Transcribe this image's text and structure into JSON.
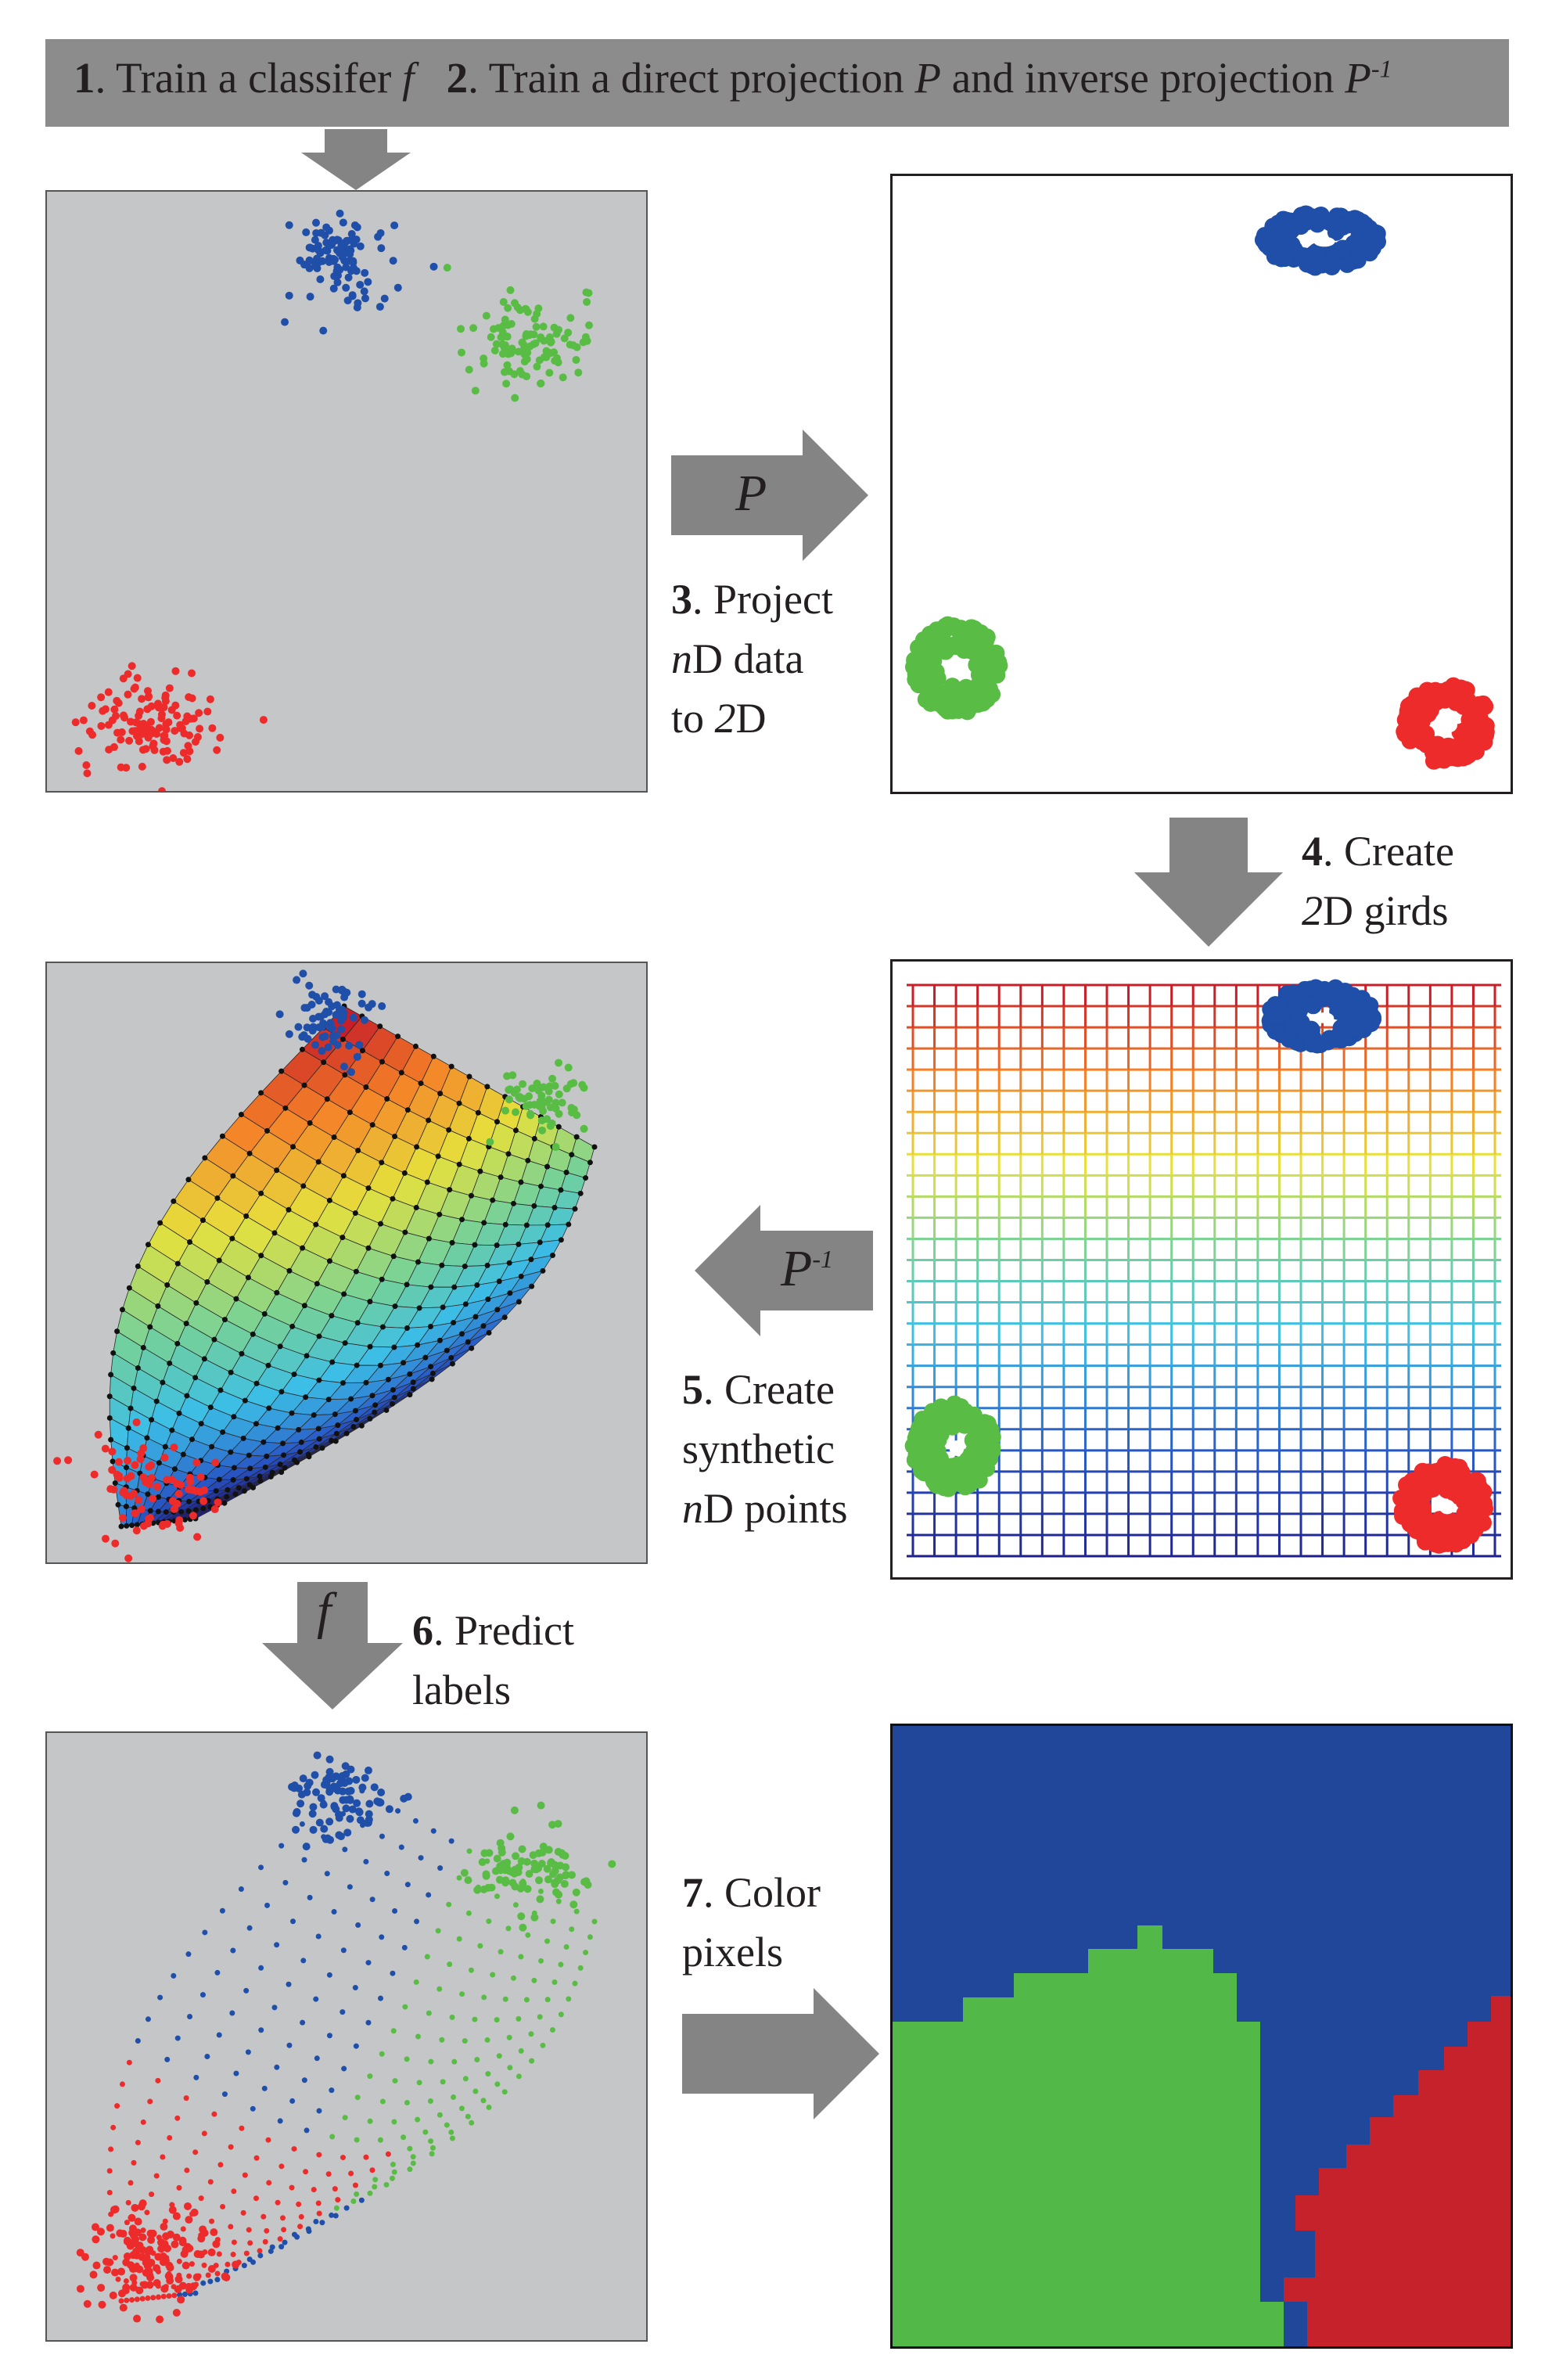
{
  "banner": {
    "step1_num": "1",
    "step1_text": ". Train a classifer ",
    "step1_symbol": "f",
    "step2_num": "2",
    "step2_text": ". Train a direct projection ",
    "step2_symbol": "P",
    "step2_mid": " and inverse projection ",
    "step2_symbol_inv": "P",
    "step2_sup": "-1"
  },
  "steps": {
    "s3": {
      "num": "3",
      "line1": ". Project",
      "line2_it": "n",
      "line2": "D data",
      "line3a": "to ",
      "line3_it": "2",
      "line3b": "D"
    },
    "s4": {
      "num": "4",
      "line1": ". Create",
      "line2_it": "2",
      "line2": "D girds"
    },
    "s5": {
      "num": "5",
      "line1": ". Create",
      "line2": "synthetic",
      "line3_it": "n",
      "line3": "D points"
    },
    "s6": {
      "num": "6",
      "line1": ". Predict",
      "line2": "labels"
    },
    "s7": {
      "num": "7",
      "line1": ". Color",
      "line2": "pixels"
    }
  },
  "arrows": {
    "projection": "P",
    "inverse": "P",
    "inverse_sup": "-1",
    "classifier": "f"
  },
  "colors": {
    "blue": "#1f4fa8",
    "green": "#59bd45",
    "red": "#ee2b2b",
    "panel_gray": "#c5c6c8",
    "arrow_gray": "#848484",
    "map_blue": "#21479b",
    "map_green": "#52b848",
    "map_red": "#c5222c"
  }
}
